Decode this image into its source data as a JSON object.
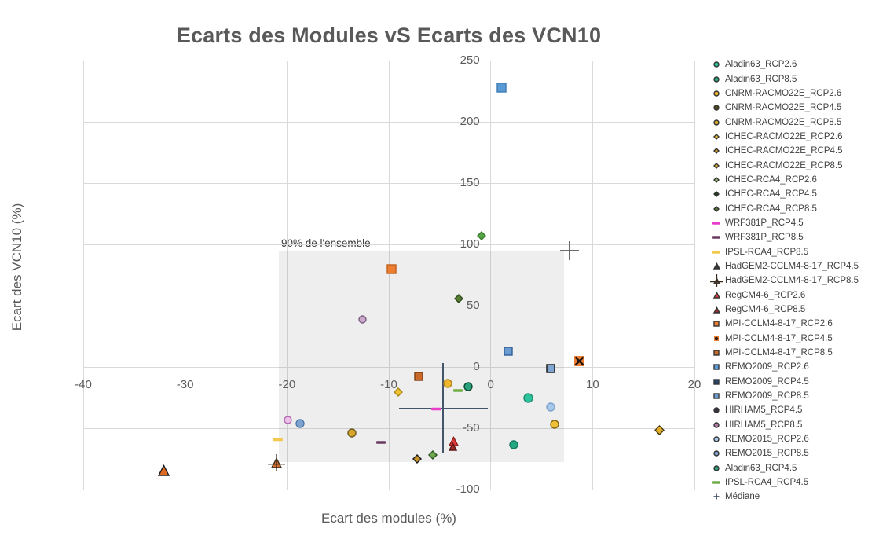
{
  "chart_data": {
    "type": "scatter",
    "title": "Ecarts des Modules vS Ecarts des VCN10",
    "xlabel": "Ecart des modules (%)",
    "ylabel": "Ecart des VCN10 (%)",
    "xlim": [
      -40,
      20
    ],
    "ylim": [
      -100,
      250
    ],
    "x_ticks": [
      -40,
      -30,
      -20,
      -10,
      0,
      10,
      20
    ],
    "y_ticks": [
      250,
      200,
      150,
      100,
      50,
      0,
      -50,
      -100
    ],
    "grid": true,
    "legend_position": "right",
    "colors": {
      "title": "#595959",
      "axis_text": "#595959",
      "grid": "#d9d9d9",
      "legend_text": "#404040",
      "median": "#44546a",
      "outlier_plus": "#5a5a5a"
    },
    "shaded_region": {
      "label": "90% de l'ensemble",
      "x_range": [
        -20.8,
        7.2
      ],
      "y_range": [
        -77.5,
        95
      ]
    },
    "median": {
      "x": -4.7,
      "y": -34,
      "x_arm": [
        -9.0,
        -0.3
      ],
      "y_arm": [
        3.2,
        -70.5
      ]
    },
    "outlier_plus": {
      "x": 7.7,
      "y": 95
    },
    "series": [
      {
        "name": "Aladin63_RCP2.6",
        "marker": "circle",
        "color": "#2ec49b",
        "edge": "#1f8e70",
        "size": 13,
        "x": 3.7,
        "y": -25.5
      },
      {
        "name": "Aladin63_RCP8.5",
        "marker": "circle",
        "color": "#25a783",
        "edge": "#16795d",
        "size": 12,
        "x": 2.3,
        "y": -63.5
      },
      {
        "name": "CNRM-RACMO22E_RCP2.6",
        "marker": "circle",
        "color": "#edb62c",
        "edge": "#b3851a",
        "size": 12,
        "x": -4.2,
        "y": -13.5
      },
      {
        "name": "CNRM-RACMO22E_RCP4.5",
        "marker": "circle",
        "color": "#efbf38",
        "edge": "#8a6a14",
        "legend_color": "#4f4a1c",
        "size": 12,
        "x": 6.3,
        "y": -47
      },
      {
        "name": "CNRM-RACMO22E_RCP8.5",
        "marker": "circle",
        "color": "#d8a62a",
        "edge": "#6b5a1e",
        "size": 12,
        "x": -13.6,
        "y": -54
      },
      {
        "name": "ICHEC-RACMO22E_RCP2.6",
        "marker": "diamond",
        "color": "#f2c12e",
        "edge": "#a8841c",
        "size": 12,
        "x": -9.1,
        "y": -20.5
      },
      {
        "name": "ICHEC-RACMO22E_RCP4.5",
        "marker": "diamond",
        "color": "#c9972b",
        "edge": "#1a1a1a",
        "size": 12,
        "x": -7.2,
        "y": -75
      },
      {
        "name": "ICHEC-RACMO22E_RCP8.5",
        "marker": "diamond",
        "color": "#e2ae2a",
        "edge": "#4a3c10",
        "size": 13,
        "x": 16.6,
        "y": -51.5
      },
      {
        "name": "ICHEC-RCA4_RCP2.6",
        "marker": "diamond",
        "color": "#55a546",
        "edge": "#3c7a30",
        "legend_color": "#93be70",
        "size": 12,
        "x": -0.9,
        "y": 107
      },
      {
        "name": "ICHEC-RCA4_RCP4.5",
        "marker": "diamond",
        "color": "#6fa84f",
        "edge": "#2f5424",
        "legend_color": "#263a22",
        "size": 12,
        "x": -5.7,
        "y": -72
      },
      {
        "name": "ICHEC-RCA4_RCP8.5",
        "marker": "diamond",
        "color": "#567e35",
        "edge": "#2c4a1a",
        "size": 12,
        "x": -3.1,
        "y": 56
      },
      {
        "name": "WRF381P_RCP4.5",
        "marker": "dash",
        "color": "#e93ec8",
        "edge": null,
        "size": 13,
        "x": -5.3,
        "y": -34.5
      },
      {
        "name": "WRF381P_RCP8.5",
        "marker": "dash",
        "color": "#6b3a63",
        "edge": null,
        "size": 12,
        "x": -10.8,
        "y": -61.5
      },
      {
        "name": "IPSL-RCA4_RCP8.5",
        "marker": "dash",
        "color": "#f2c94c",
        "edge": null,
        "size": 13,
        "x": -20.9,
        "y": -59
      },
      {
        "name": "HadGEM2-CCLM4-8-17_RCP4.5",
        "marker": "triangle",
        "color": "#e06a20",
        "edge": "#1a1a1a",
        "legend_color": "#3a3a3a",
        "size": 15,
        "x": -32.1,
        "y": -84
      },
      {
        "name": "HadGEM2-CCLM4-8-17_RCP8.5",
        "marker": "triangle-cross",
        "color": "#d07030",
        "edge": "#3a2a1a",
        "legend_color": "#8a6a5a",
        "size": 14,
        "x": -21,
        "y": -78.5
      },
      {
        "name": "RegCM4-6_RCP2.6",
        "marker": "triangle",
        "color": "#e0393b",
        "edge": "#8e1f1f",
        "size": 13,
        "x": -3.6,
        "y": -60.5
      },
      {
        "name": "RegCM4-6_RCP8.5",
        "marker": "triangle",
        "color": "#9e2b2b",
        "edge": "#5e1515",
        "size": 11,
        "x": -3.7,
        "y": -65
      },
      {
        "name": "MPI-CCLM4-8-17_RCP2.6",
        "marker": "square",
        "color": "#ed7d31",
        "edge": "#c05f1d",
        "size": 13,
        "x": -9.7,
        "y": 80
      },
      {
        "name": "MPI-CCLM4-8-17_RCP4.5",
        "marker": "x-square",
        "color": "#ed7d31",
        "edge": "#201510",
        "size": 15,
        "x": 8.7,
        "y": 4.5
      },
      {
        "name": "MPI-CCLM4-8-17_RCP8.5",
        "marker": "square",
        "color": "#c96a2a",
        "edge": "#7a3e12",
        "size": 12,
        "x": -7.1,
        "y": -8
      },
      {
        "name": "REMO2009_RCP2.6",
        "marker": "square",
        "color": "#5b9bd5",
        "edge": "#3d7ab5",
        "size": 13,
        "x": 1.1,
        "y": 228
      },
      {
        "name": "REMO2009_RCP4.5",
        "marker": "square",
        "color": "#7fa6d0",
        "edge": "#111111",
        "legend_color": "#24456e",
        "size": 12,
        "x": 5.9,
        "y": -1
      },
      {
        "name": "REMO2009_RCP8.5",
        "marker": "square",
        "color": "#6c9bd2",
        "edge": "#2e5e96",
        "size": 12,
        "x": 1.7,
        "y": 13
      },
      {
        "name": "HIRHAM5_RCP4.5",
        "marker": "circle",
        "color": "#eec2e8",
        "edge": "#b06ab0",
        "legend_color": "#3b3340",
        "size": 11,
        "x": -19.9,
        "y": -43.5
      },
      {
        "name": "HIRHAM5_RCP8.5",
        "marker": "circle",
        "color": "#c9a8c9",
        "edge": "#7a5f82",
        "legend_color": "#b07aa1",
        "size": 11,
        "x": -12.6,
        "y": 39
      },
      {
        "name": "REMO2015_RCP2.6",
        "marker": "circle",
        "color": "#a8c8ea",
        "edge": "#7ba3cf",
        "size": 12,
        "x": 5.9,
        "y": -33
      },
      {
        "name": "REMO2015_RCP8.5",
        "marker": "circle",
        "color": "#7fa3d1",
        "edge": "#4f79a8",
        "size": 12,
        "x": -18.7,
        "y": -46
      },
      {
        "name": "Aladin63_RCP4.5",
        "marker": "circle",
        "color": "#2aa07c",
        "edge": "#0e4d33",
        "size": 12,
        "x": -2.2,
        "y": -16
      },
      {
        "name": "IPSL-RCA4_RCP4.5",
        "marker": "dash",
        "color": "#70ad47",
        "edge": null,
        "size": 12,
        "x": -3.2,
        "y": -19
      },
      {
        "name": "Médiane",
        "marker": "plus",
        "color": "#44546a",
        "edge": null,
        "size": 10,
        "x": null,
        "y": null
      }
    ]
  }
}
